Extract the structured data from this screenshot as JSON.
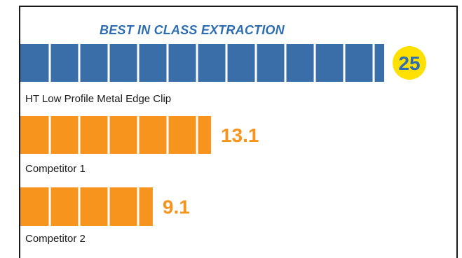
{
  "chart_data": {
    "type": "bar",
    "orientation": "horizontal",
    "title": "BEST IN CLASS EXTRACTION",
    "categories": [
      "HT Low Profile Metal Edge Clip",
      "Competitor 1",
      "Competitor 2"
    ],
    "values": [
      25,
      13.1,
      9.1
    ],
    "value_labels": [
      "25",
      "13.1",
      "9.1"
    ],
    "colors": [
      "#3a6ea8",
      "#f7941d",
      "#f7941d"
    ],
    "highlight_color": "#ffe000",
    "title_color": "#2f6db2",
    "xlim": [
      0,
      25
    ],
    "grid": false,
    "legend": "none"
  }
}
